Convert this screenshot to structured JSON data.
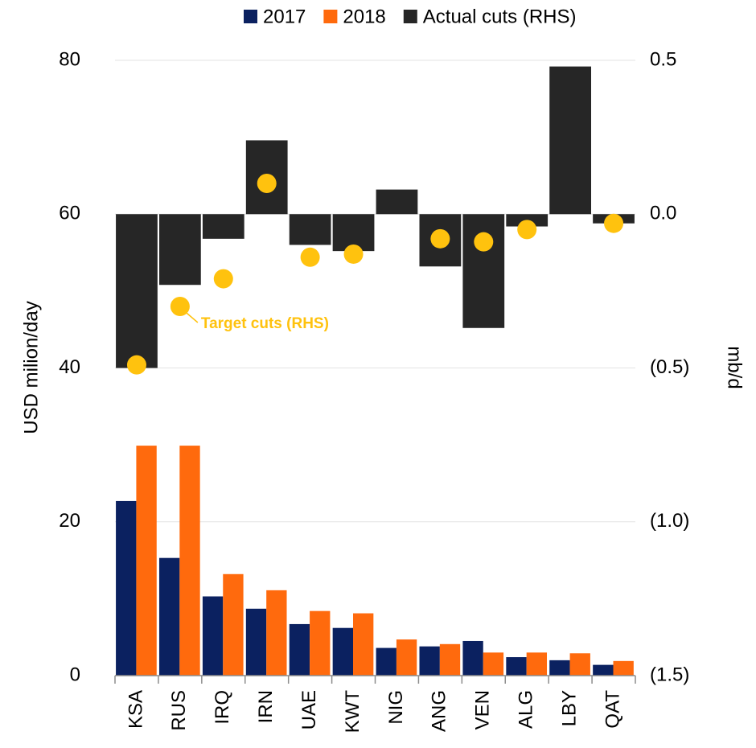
{
  "chart_data": {
    "type": "bar",
    "ylabel": "USD milion/day",
    "y2label": "mb/d",
    "categories": [
      "KSA",
      "RUS",
      "IRQ",
      "IRN",
      "UAE",
      "KWT",
      "NIG",
      "ANG",
      "VEN",
      "ALG",
      "LBY",
      "QAT"
    ],
    "series": [
      {
        "name": "2017",
        "type": "bar",
        "color": "#0b2160",
        "values": [
          22.7,
          15.3,
          10.3,
          8.7,
          6.7,
          6.2,
          3.6,
          3.8,
          4.5,
          2.4,
          2.0,
          1.4
        ]
      },
      {
        "name": "2018",
        "type": "bar",
        "color": "#ff6a0d",
        "values": [
          29.9,
          29.9,
          13.2,
          11.1,
          8.4,
          8.1,
          4.7,
          4.1,
          3.0,
          3.0,
          2.9,
          1.9
        ]
      },
      {
        "name": "Actual cuts (RHS)",
        "type": "bar",
        "axis": "y2",
        "color": "#262626",
        "values": [
          -0.5,
          -0.23,
          -0.08,
          0.24,
          -0.1,
          -0.12,
          0.08,
          -0.17,
          -0.37,
          -0.04,
          0.48,
          -0.03
        ]
      },
      {
        "name": "Target cuts (RHS)",
        "type": "scatter",
        "axis": "y2",
        "color": "#ffc20e",
        "values": [
          -0.49,
          -0.3,
          -0.21,
          0.1,
          -0.14,
          -0.13,
          null,
          -0.08,
          -0.09,
          -0.05,
          null,
          -0.03
        ]
      }
    ],
    "ylim": [
      0,
      80
    ],
    "yticks": [
      0,
      20,
      40,
      60,
      80
    ],
    "y2lim": [
      -1.5,
      0.5
    ],
    "y2ticks": [
      {
        "value": -1.5,
        "label": "(1.5)"
      },
      {
        "value": -1.0,
        "label": "(1.0)"
      },
      {
        "value": -0.5,
        "label": "(0.5)"
      },
      {
        "value": 0,
        "label": "0.0"
      },
      0.5
    ],
    "grid": true,
    "legend": "top"
  }
}
